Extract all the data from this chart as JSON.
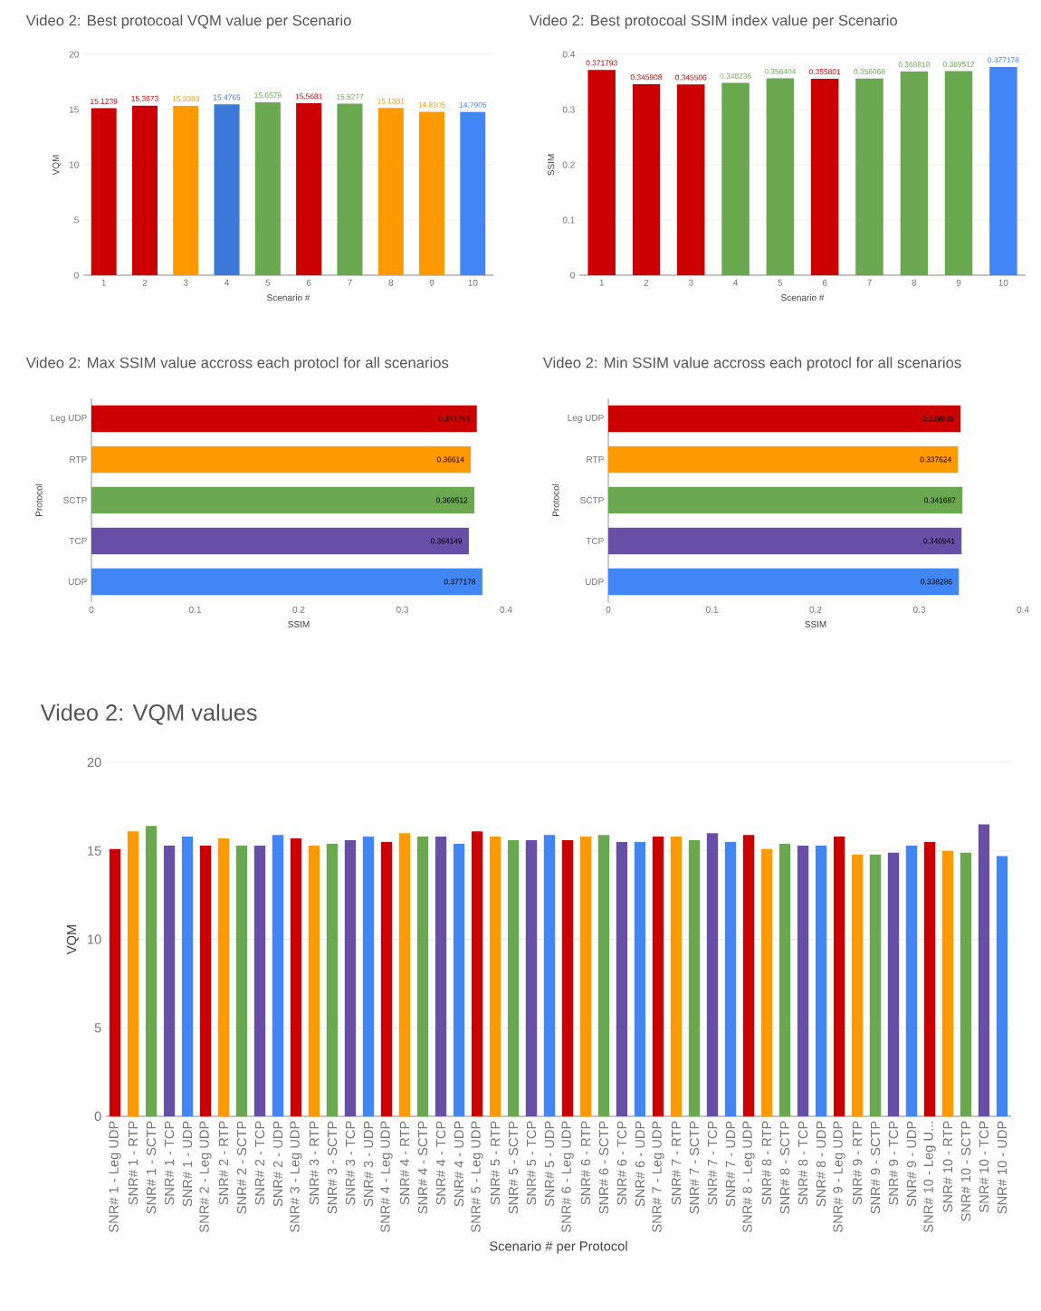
{
  "chart_data": [
    {
      "type": "bar",
      "title": "Video 2: Best protocoal VQM value per Scenario",
      "xlabel": "Scenario #",
      "ylabel": "VQM",
      "categories": [
        "1",
        "2",
        "3",
        "4",
        "5",
        "6",
        "7",
        "8",
        "9",
        "10"
      ],
      "values": [
        15.1239,
        15.3673,
        15.3383,
        15.4765,
        15.6579,
        15.5681,
        15.5277,
        15.1331,
        14.8105,
        14.7905
      ],
      "colors": [
        "#cc0000",
        "#cc0000",
        "#ff9900",
        "#3c78d8",
        "#6aa84f",
        "#cc0000",
        "#6aa84f",
        "#ff9900",
        "#ff9900",
        "#4285f4"
      ],
      "ylim": [
        0,
        20
      ],
      "yticks": [
        0,
        5,
        10,
        15,
        20
      ],
      "grid": "y",
      "data_labels": true
    },
    {
      "type": "bar",
      "title": "Video 2: Best protocoal SSIM index value per Scenario",
      "xlabel": "Scenario #",
      "ylabel": "SSIM",
      "categories": [
        "1",
        "2",
        "3",
        "4",
        "5",
        "6",
        "7",
        "8",
        "9",
        "10"
      ],
      "values": [
        0.371793,
        0.345908,
        0.345506,
        0.348236,
        0.356404,
        0.355801,
        0.356069,
        0.368818,
        0.369512,
        0.377178
      ],
      "colors": [
        "#cc0000",
        "#cc0000",
        "#cc0000",
        "#6aa84f",
        "#6aa84f",
        "#cc0000",
        "#6aa84f",
        "#6aa84f",
        "#6aa84f",
        "#4285f4"
      ],
      "ylim": [
        0,
        0.4
      ],
      "yticks": [
        0,
        0.1,
        0.2,
        0.3,
        0.4
      ],
      "grid": "y",
      "data_labels": true
    },
    {
      "type": "bar",
      "orientation": "horizontal",
      "title": "Video 2: Max SSIM value accross each protocl for all scenarios",
      "xlabel": "SSIM",
      "ylabel": "Protocol",
      "categories": [
        "Leg UDP",
        "RTP",
        "SCTP",
        "TCP",
        "UDP"
      ],
      "values": [
        0.371793,
        0.36614,
        0.369512,
        0.364149,
        0.377178
      ],
      "colors": [
        "#cc0000",
        "#ff9900",
        "#6aa84f",
        "#674ea7",
        "#4285f4"
      ],
      "xlim": [
        0,
        0.4
      ],
      "xticks": [
        0,
        0.1,
        0.2,
        0.3,
        0.4
      ],
      "data_labels": true
    },
    {
      "type": "bar",
      "orientation": "horizontal",
      "title": "Video 2: Min SSIM value accross each protocl for all scenarios",
      "xlabel": "SSIM",
      "ylabel": "Protocol",
      "categories": [
        "Leg UDP",
        "RTP",
        "SCTP",
        "TCP",
        "UDP"
      ],
      "values": [
        0.339835,
        0.337624,
        0.341687,
        0.340941,
        0.338286
      ],
      "colors": [
        "#cc0000",
        "#ff9900",
        "#6aa84f",
        "#674ea7",
        "#4285f4"
      ],
      "xlim": [
        0,
        0.4
      ],
      "xticks": [
        0,
        0.1,
        0.2,
        0.3,
        0.4
      ],
      "data_labels": true
    },
    {
      "type": "bar",
      "title": "Video 2: VQM values",
      "xlabel": "Scenario # per Protocol",
      "ylabel": "VQM",
      "categories": [
        "SNR# 1 - Leg UDP",
        "SNR# 1 - RTP",
        "SNR# 1 - SCTP",
        "SNR# 1 - TCP",
        "SNR# 1 - UDP",
        "SNR# 2 - Leg UDP",
        "SNR# 2 - RTP",
        "SNR# 2 - SCTP",
        "SNR# 2 - TCP",
        "SNR# 2 - UDP",
        "SNR# 3 - Leg UDP",
        "SNR# 3 - RTP",
        "SNR# 3 - SCTP",
        "SNR# 3 - TCP",
        "SNR# 3 - UDP",
        "SNR# 4 - Leg UDP",
        "SNR# 4 - RTP",
        "SNR# 4 - SCTP",
        "SNR# 4 - TCP",
        "SNR# 4 - UDP",
        "SNR# 5 - Leg UDP",
        "SNR# 5 - RTP",
        "SNR# 5 - SCTP",
        "SNR# 5 - TCP",
        "SNR# 5 - UDP",
        "SNR# 6 - Leg UDP",
        "SNR# 6 - RTP",
        "SNR# 6 - SCTP",
        "SNR# 6 - TCP",
        "SNR# 6 - UDP",
        "SNR# 7 - Leg UDP",
        "SNR# 7 - RTP",
        "SNR# 7 - SCTP",
        "SNR# 7 - TCP",
        "SNR# 7 - UDP",
        "SNR# 8 - Leg UDP",
        "SNR# 8 - RTP",
        "SNR# 8 - SCTP",
        "SNR# 8 - TCP",
        "SNR# 8 - UDP",
        "SNR# 9 - Leg UDP",
        "SNR# 9 - RTP",
        "SNR# 9 - SCTP",
        "SNR# 9 - TCP",
        "SNR# 9 - UDP",
        "SNR# 10 - Leg U...",
        "SNR# 10 - RTP",
        "SNR# 10 - SCTP",
        "SNR# 10 - TCP",
        "SNR# 10 - UDP"
      ],
      "values": [
        15.1,
        16.1,
        16.4,
        15.3,
        15.8,
        15.3,
        15.7,
        15.3,
        15.3,
        15.9,
        15.7,
        15.3,
        15.4,
        15.6,
        15.8,
        15.5,
        16.0,
        15.8,
        15.8,
        15.4,
        16.1,
        15.8,
        15.6,
        15.6,
        15.9,
        15.6,
        15.8,
        15.9,
        15.5,
        15.5,
        15.8,
        15.8,
        15.6,
        16.0,
        15.5,
        15.9,
        15.1,
        15.4,
        15.3,
        15.3,
        15.8,
        14.8,
        14.8,
        14.9,
        15.3,
        15.5,
        15.0,
        14.9,
        16.5,
        14.7
      ],
      "colors": [
        "#cc0000",
        "#ff9900",
        "#6aa84f",
        "#674ea7",
        "#4285f4",
        "#cc0000",
        "#ff9900",
        "#6aa84f",
        "#674ea7",
        "#4285f4",
        "#cc0000",
        "#ff9900",
        "#6aa84f",
        "#674ea7",
        "#4285f4",
        "#cc0000",
        "#ff9900",
        "#6aa84f",
        "#674ea7",
        "#4285f4",
        "#cc0000",
        "#ff9900",
        "#6aa84f",
        "#674ea7",
        "#4285f4",
        "#cc0000",
        "#ff9900",
        "#6aa84f",
        "#674ea7",
        "#4285f4",
        "#cc0000",
        "#ff9900",
        "#6aa84f",
        "#674ea7",
        "#4285f4",
        "#cc0000",
        "#ff9900",
        "#6aa84f",
        "#674ea7",
        "#4285f4",
        "#cc0000",
        "#ff9900",
        "#6aa84f",
        "#674ea7",
        "#4285f4",
        "#cc0000",
        "#ff9900",
        "#6aa84f",
        "#674ea7",
        "#4285f4"
      ],
      "ylim": [
        0,
        20
      ],
      "yticks": [
        0,
        5,
        10,
        15,
        20
      ],
      "grid": "y"
    }
  ]
}
